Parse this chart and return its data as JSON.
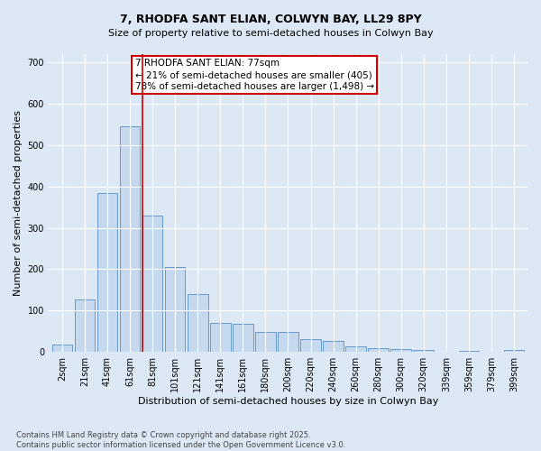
{
  "title": "7, RHODFA SANT ELIAN, COLWYN BAY, LL29 8PY",
  "subtitle": "Size of property relative to semi-detached houses in Colwyn Bay",
  "xlabel": "Distribution of semi-detached houses by size in Colwyn Bay",
  "ylabel": "Number of semi-detached properties",
  "categories": [
    "2sqm",
    "21sqm",
    "41sqm",
    "61sqm",
    "81sqm",
    "101sqm",
    "121sqm",
    "141sqm",
    "161sqm",
    "180sqm",
    "200sqm",
    "220sqm",
    "240sqm",
    "260sqm",
    "280sqm",
    "300sqm",
    "320sqm",
    "339sqm",
    "359sqm",
    "379sqm",
    "399sqm"
  ],
  "values": [
    18,
    127,
    385,
    545,
    330,
    205,
    140,
    70,
    68,
    48,
    48,
    30,
    27,
    13,
    10,
    6,
    5,
    1,
    3,
    0,
    5
  ],
  "bar_color": "#c5d8ee",
  "bar_edge_color": "#6699cc",
  "vline_color": "#cc0000",
  "annotation_text": "7 RHODFA SANT ELIAN: 77sqm\n← 21% of semi-detached houses are smaller (405)\n78% of semi-detached houses are larger (1,498) →",
  "annotation_box_color": "#ffffff",
  "annotation_box_edge_color": "#cc0000",
  "footnote": "Contains HM Land Registry data © Crown copyright and database right 2025.\nContains public sector information licensed under the Open Government Licence v3.0.",
  "background_color": "#dde8f5",
  "plot_bg_color": "#dde8f5",
  "ylim": [
    0,
    720
  ],
  "yticks": [
    0,
    100,
    200,
    300,
    400,
    500,
    600,
    700
  ],
  "title_fontsize": 9,
  "subtitle_fontsize": 8,
  "axis_label_fontsize": 8,
  "tick_fontsize": 7,
  "annotation_fontsize": 7.5,
  "footnote_fontsize": 6
}
